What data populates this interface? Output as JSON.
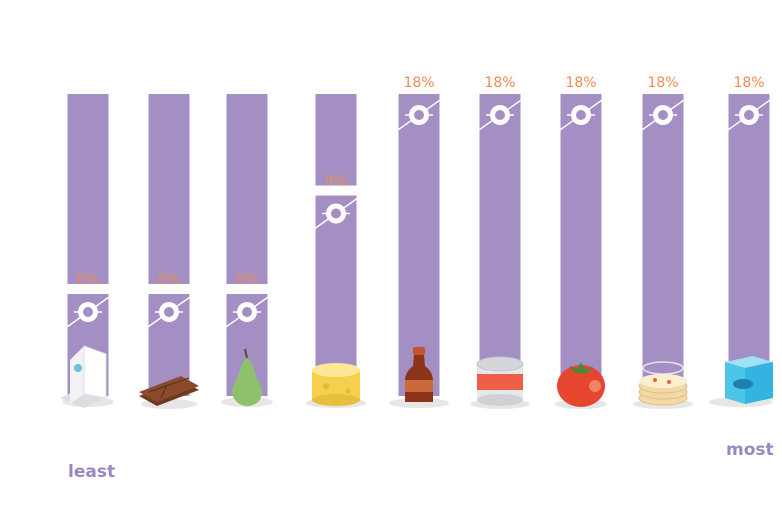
{
  "chart_data": {
    "type": "bar",
    "categories": [
      "",
      "",
      "",
      "",
      "",
      "",
      "",
      "",
      ""
    ],
    "values": [
      0,
      0,
      0,
      9,
      18,
      18,
      18,
      18,
      18
    ],
    "value_labels": [
      "0%",
      "0%",
      "0%",
      "9%",
      "18%",
      "18%",
      "18%",
      "18%",
      "18%"
    ],
    "ylim": [
      0,
      18
    ],
    "icons": [
      "milk-carton-icon",
      "chocolate-bar-icon",
      "pear-icon",
      "cheese-wheel-icon",
      "sauce-bottle-icon",
      "tin-can-icon",
      "tomato-icon",
      "pizza-stack-icon",
      "frozen-fish-icon"
    ],
    "scale_labels": {
      "least": "least",
      "most": "most"
    },
    "grid": false,
    "legend": "none"
  },
  "colors": {
    "bar": "#a38fc3",
    "value_label": "#f08a53",
    "scale_label": "#9b86c4",
    "marker_fill": "#ffffff",
    "connector": "#ffffff"
  }
}
